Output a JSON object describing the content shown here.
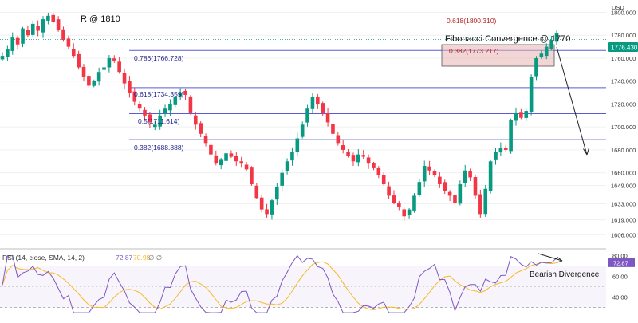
{
  "chart_data": {
    "type": "candlestick",
    "currency": "USD",
    "price_axis": {
      "ticks": [
        1800.0,
        1780.0,
        1760.0,
        1740.0,
        1720.0,
        1700.0,
        1680.0,
        1660.0,
        1649.0,
        1633.0,
        1619.0,
        1606.0
      ],
      "tick_labels": [
        "1800.000",
        "1780.000",
        "1760.000",
        "1740.000",
        "1720.000",
        "1700.000",
        "1680.000",
        "1660.000",
        "1649.000",
        "1633.000",
        "1619.000",
        "1606.000"
      ],
      "range": [
        1602,
        1808
      ]
    },
    "current_price": {
      "value": 1776.43,
      "label": "1776.430",
      "color": "#089981"
    },
    "fibonacci_levels": [
      {
        "ratio": "0.786",
        "value": 1766.728,
        "label": "0.786(1766.728)"
      },
      {
        "ratio": "0.618",
        "value": 1734.359,
        "label": "0.618(1734.359)"
      },
      {
        "ratio": "0.5",
        "value": 1711.614,
        "label": "0.5(1711.614)"
      },
      {
        "ratio": "0.382",
        "value": 1688.888,
        "label": "0.382(1688.888)"
      }
    ],
    "upper_fibonacci": [
      {
        "ratio": "0.618",
        "value": 1800.31,
        "label": "0.618(1800.310)"
      },
      {
        "ratio": "0.382",
        "value": 1773.217,
        "label": "0.382(1773.217)"
      }
    ],
    "annotations": {
      "resistance": "R @ 1810",
      "convergence": "Fibonacci Convergence @ 1770",
      "divergence": "Bearish Divergence"
    },
    "close_path": [
      1762,
      1768,
      1778,
      1772,
      1786,
      1780,
      1790,
      1784,
      1794,
      1797,
      1792,
      1785,
      1776,
      1770,
      1762,
      1752,
      1744,
      1736,
      1740,
      1748,
      1752,
      1760,
      1758,
      1748,
      1738,
      1730,
      1722,
      1716,
      1710,
      1704,
      1702,
      1710,
      1716,
      1720,
      1726,
      1730,
      1728,
      1712,
      1702,
      1694,
      1686,
      1676,
      1668,
      1672,
      1677,
      1674,
      1670,
      1668,
      1663,
      1650,
      1638,
      1628,
      1624,
      1636,
      1648,
      1660,
      1670,
      1678,
      1690,
      1702,
      1716,
      1726,
      1720,
      1712,
      1704,
      1694,
      1686,
      1680,
      1675,
      1670,
      1676,
      1674,
      1668,
      1664,
      1658,
      1650,
      1640,
      1634,
      1630,
      1622,
      1628,
      1640,
      1652,
      1666,
      1662,
      1658,
      1650,
      1644,
      1640,
      1634,
      1650,
      1662,
      1656,
      1640,
      1624,
      1646,
      1670,
      1678,
      1682,
      1680,
      1706,
      1712,
      1708,
      1714,
      1744,
      1760,
      1764,
      1770,
      1776,
      1782
    ],
    "rsi": {
      "label": "RSI (14, close, SMA, 14, 2)",
      "value": "72.87",
      "sma_value": "70.98",
      "extra": "∅  ∅",
      "ticks": [
        80.0,
        60.0,
        40.0
      ],
      "tick_labels": [
        "80.00",
        "60.00",
        "40.00"
      ],
      "upper_band": 70,
      "lower_band": 30,
      "range": [
        22,
        82
      ]
    },
    "colors": {
      "up": "#089981",
      "down": "#f23645",
      "fib_line": "#5a5ad6",
      "rsi_line": "#7e57c2",
      "rsi_sma": "#f7b928",
      "zone_fill": "#e8b5b2",
      "annotation_red": "#b22222"
    }
  }
}
